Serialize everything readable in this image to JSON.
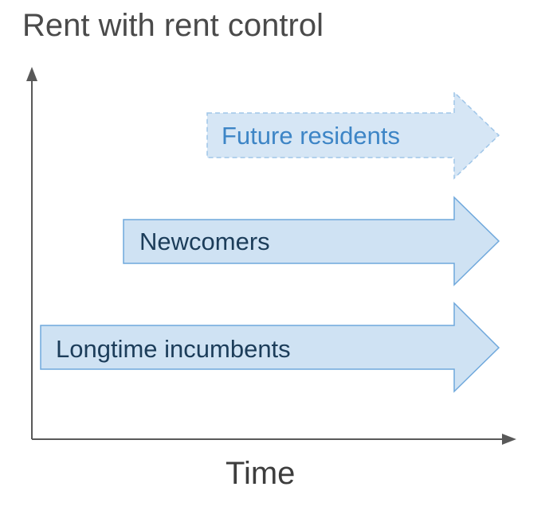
{
  "title": "Rent with rent control",
  "x_axis_label": "Time",
  "arrows": [
    {
      "label": "Future residents",
      "style": "dashed"
    },
    {
      "label": "Newcomers",
      "style": "solid"
    },
    {
      "label": "Longtime incumbents",
      "style": "solid"
    }
  ],
  "colors": {
    "arrow_fill": "#cfe2f3",
    "arrow_stroke": "#6fa8dc",
    "future_text": "#3d85c6",
    "solid_text": "#1c3d5a",
    "axis": "#595959"
  }
}
